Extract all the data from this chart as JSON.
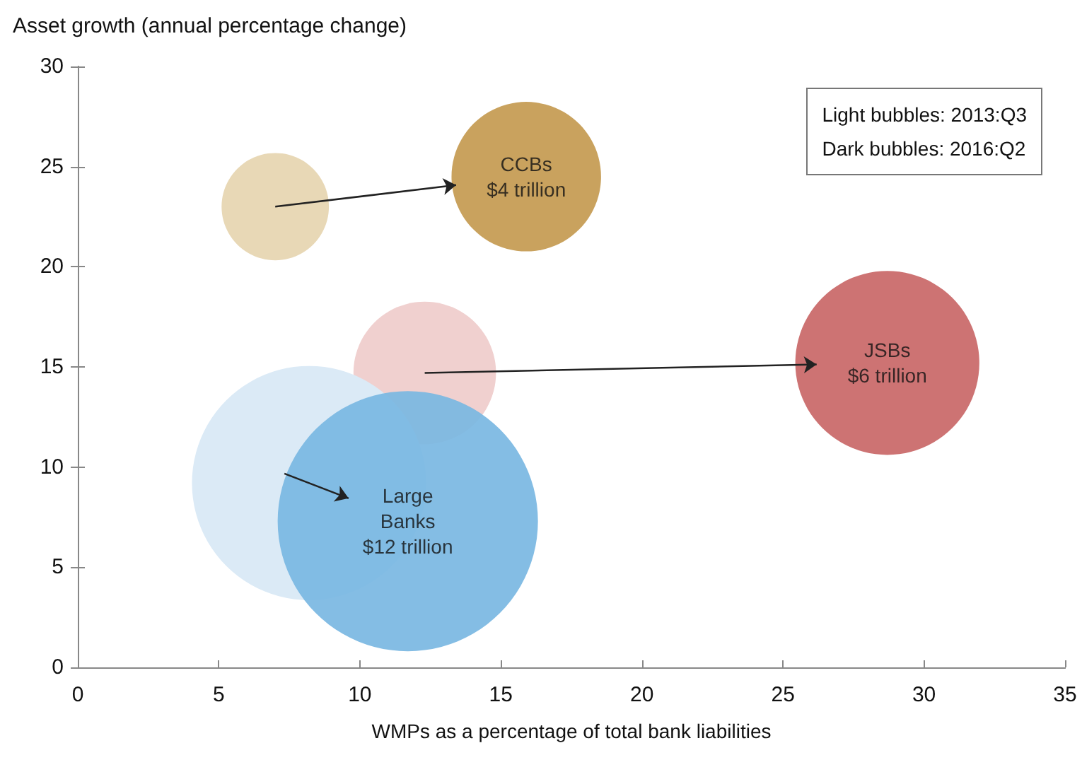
{
  "chart_data": {
    "type": "bubble",
    "ylabel": "Asset growth (annual percentage change)",
    "xlabel": "WMPs as a percentage of total bank liabilities",
    "xlim": [
      0,
      35
    ],
    "xticks": [
      0,
      5,
      10,
      15,
      20,
      25,
      30,
      35
    ],
    "ylim": [
      0,
      30
    ],
    "yticks": [
      0,
      5,
      10,
      15,
      20,
      25,
      30
    ],
    "grid": false,
    "series": [
      {
        "x": [
          7,
          12.3,
          8.2
        ],
        "values": [
          23,
          14.7,
          9.2
        ],
        "sizes": [
          0.17,
          0.3,
          0.81
        ],
        "colors": [
          "#e8d8b6",
          "#f0d0cf",
          "#dbeaf6"
        ]
      },
      {
        "x": [
          15.9,
          28.7,
          11.7
        ],
        "values": [
          24.5,
          15.2,
          7.3
        ],
        "sizes": [
          0.33,
          0.5,
          1
        ],
        "colors": [
          "#c49a50",
          "#c96767",
          "#79b7e2"
        ]
      }
    ],
    "annotations": [
      "CCBs\n$4 trillion",
      "JSBs\n$6 trillion",
      "Large\nBanks\n$12 trillion",
      "Light bubbles: 2013:Q3",
      "Dark bubbles: 2016:Q2"
    ]
  }
}
